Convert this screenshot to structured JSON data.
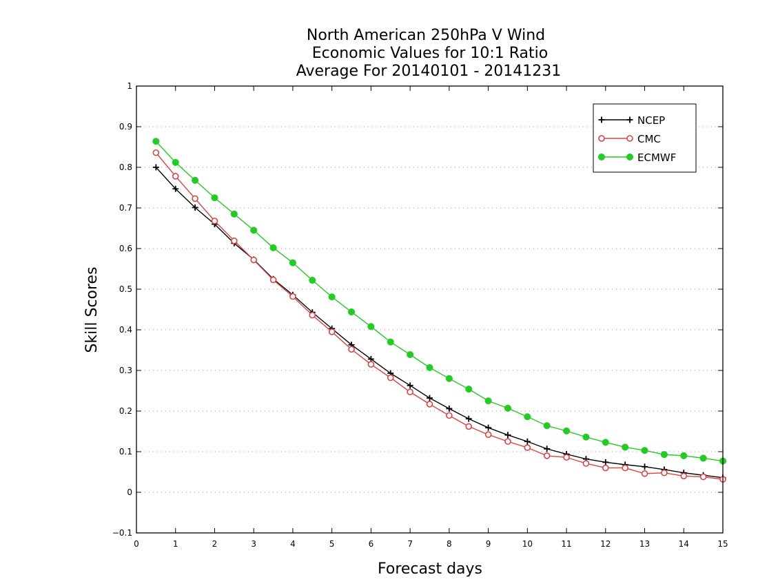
{
  "chart_data": {
    "type": "line",
    "title_lines": [
      "North American 250hPa V Wind",
      "Economic Values for 10:1 Ratio",
      "Average For 20140101 - 20141231"
    ],
    "xlabel": "Forecast days",
    "ylabel": "Skill Scores",
    "xlim": [
      0,
      15
    ],
    "ylim": [
      -0.1,
      1
    ],
    "x_ticks": [
      "0",
      "1",
      "2",
      "3",
      "4",
      "5",
      "6",
      "7",
      "8",
      "9",
      "10",
      "11",
      "12",
      "13",
      "14",
      "15"
    ],
    "y_ticks": [
      "−0.1",
      "0",
      "0.1",
      "0.2",
      "0.3",
      "0.4",
      "0.5",
      "0.6",
      "0.7",
      "0.8",
      "0.9",
      "1"
    ],
    "y_grid": true,
    "legend_position": "top-right",
    "x": [
      0.5,
      1,
      1.5,
      2,
      2.5,
      3,
      3.5,
      4,
      4.5,
      5,
      5.5,
      6,
      6.5,
      7,
      7.5,
      8,
      8.5,
      9,
      9.5,
      10,
      10.5,
      11,
      11.5,
      12,
      12.5,
      13,
      13.5,
      14,
      14.5,
      15
    ],
    "series": [
      {
        "name": "NCEP",
        "color": "#000000",
        "marker": "plus",
        "values": [
          0.8,
          0.747,
          0.701,
          0.66,
          0.613,
          0.573,
          0.525,
          0.486,
          0.443,
          0.403,
          0.363,
          0.328,
          0.293,
          0.263,
          0.232,
          0.206,
          0.181,
          0.159,
          0.141,
          0.125,
          0.107,
          0.094,
          0.082,
          0.074,
          0.068,
          0.063,
          0.056,
          0.048,
          0.042,
          0.036
        ]
      },
      {
        "name": "CMC",
        "color": "#e04040",
        "marker": "open-circle",
        "values": [
          0.836,
          0.778,
          0.723,
          0.668,
          0.619,
          0.572,
          0.523,
          0.482,
          0.436,
          0.395,
          0.352,
          0.315,
          0.282,
          0.247,
          0.217,
          0.189,
          0.162,
          0.142,
          0.125,
          0.11,
          0.09,
          0.086,
          0.071,
          0.06,
          0.06,
          0.046,
          0.048,
          0.04,
          0.038,
          0.032
        ]
      },
      {
        "name": "ECMWF",
        "color": "#22cc22",
        "marker": "filled-circle",
        "values": [
          0.864,
          0.812,
          0.768,
          0.725,
          0.685,
          0.645,
          0.602,
          0.565,
          0.522,
          0.481,
          0.444,
          0.408,
          0.37,
          0.339,
          0.307,
          0.28,
          0.254,
          0.225,
          0.207,
          0.186,
          0.164,
          0.151,
          0.136,
          0.123,
          0.111,
          0.103,
          0.093,
          0.09,
          0.084,
          0.077
        ]
      }
    ]
  }
}
